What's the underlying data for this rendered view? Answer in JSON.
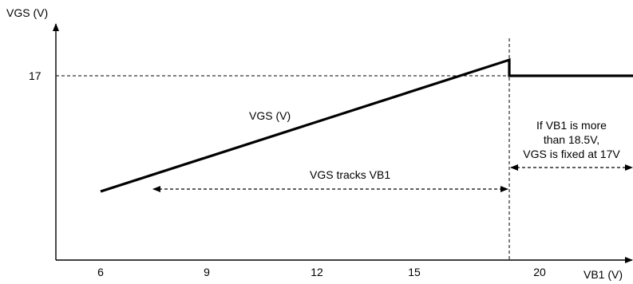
{
  "chart_data": {
    "type": "line",
    "ylabel": "VGS (V)",
    "xlabel": "VB1 (V)",
    "x_ticks": [
      "6",
      "9",
      "12",
      "15",
      "20"
    ],
    "y_ticks": [
      "17"
    ],
    "series": [
      {
        "name": "VGS (V)",
        "points": [
          {
            "x": 6,
            "y": 9
          },
          {
            "x": 18.5,
            "y": 18.1
          },
          {
            "x": 18.5,
            "y": 17
          },
          {
            "x": 21.5,
            "y": 17
          }
        ]
      }
    ],
    "reference_lines": {
      "y_value": 17,
      "x_value": 18.5
    },
    "annotations": [
      {
        "text": "VGS tracks VB1",
        "from_x": 7.6,
        "to_x": 18.5
      },
      {
        "lines": [
          "If VB1 is more",
          "than 18.5V,",
          "VGS is fixed at 17V"
        ],
        "from_x": 18.5,
        "to_x": 21.5
      }
    ],
    "grid": false,
    "legend": "none"
  }
}
